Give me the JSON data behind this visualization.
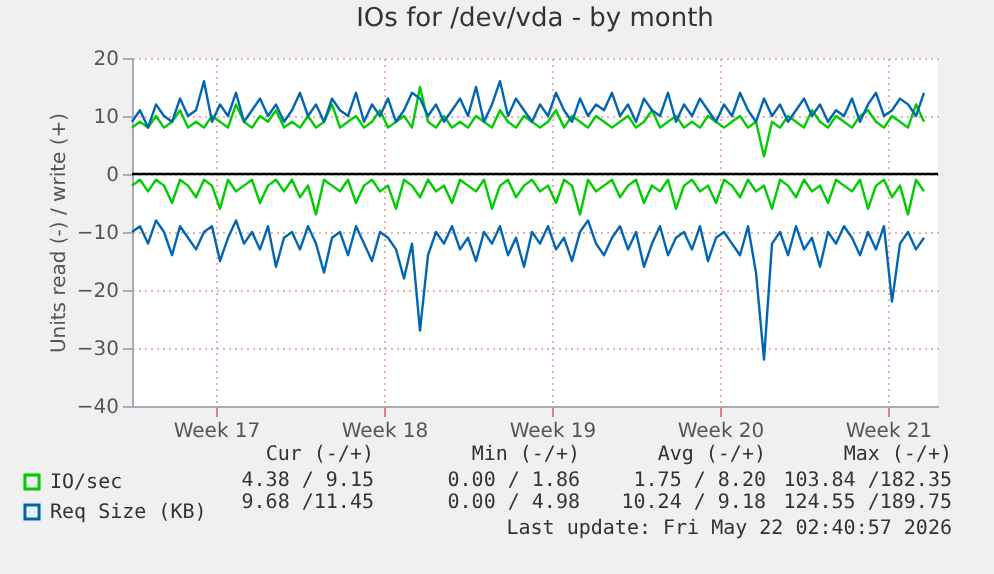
{
  "chart_data": {
    "type": "line",
    "title": "IOs for /dev/vda - by month",
    "ylabel": "Units read (-) / write (+)",
    "x": [
      "2026-04-20T00:00",
      "2026-04-20T08:00",
      "2026-04-20T16:00",
      "2026-04-21T00:00",
      "2026-04-21T08:00",
      "2026-04-21T16:00",
      "2026-04-22T00:00",
      "2026-04-22T08:00",
      "2026-04-22T16:00",
      "2026-04-23T00:00",
      "2026-04-23T08:00",
      "2026-04-23T16:00",
      "2026-04-24T00:00",
      "2026-04-24T08:00",
      "2026-04-24T16:00",
      "2026-04-25T00:00",
      "2026-04-25T08:00",
      "2026-04-25T16:00",
      "2026-04-26T00:00",
      "2026-04-26T08:00",
      "2026-04-26T16:00",
      "2026-04-27T00:00",
      "2026-04-27T08:00",
      "2026-04-27T16:00",
      "2026-04-28T00:00",
      "2026-04-28T08:00",
      "2026-04-28T16:00",
      "2026-04-29T00:00",
      "2026-04-29T08:00",
      "2026-04-29T16:00",
      "2026-04-30T00:00",
      "2026-04-30T08:00",
      "2026-04-30T16:00",
      "2026-05-01T00:00",
      "2026-05-01T08:00",
      "2026-05-01T16:00",
      "2026-05-02T00:00",
      "2026-05-02T08:00",
      "2026-05-02T16:00",
      "2026-05-03T00:00",
      "2026-05-03T08:00",
      "2026-05-03T16:00",
      "2026-05-04T00:00",
      "2026-05-04T08:00",
      "2026-05-04T16:00",
      "2026-05-05T00:00",
      "2026-05-05T08:00",
      "2026-05-05T16:00",
      "2026-05-06T00:00",
      "2026-05-06T08:00",
      "2026-05-06T16:00",
      "2026-05-07T00:00",
      "2026-05-07T08:00",
      "2026-05-07T16:00",
      "2026-05-08T00:00",
      "2026-05-08T08:00",
      "2026-05-08T16:00",
      "2026-05-09T00:00",
      "2026-05-09T08:00",
      "2026-05-09T16:00",
      "2026-05-10T00:00",
      "2026-05-10T08:00",
      "2026-05-10T16:00",
      "2026-05-11T00:00",
      "2026-05-11T08:00",
      "2026-05-11T16:00",
      "2026-05-12T00:00",
      "2026-05-12T08:00",
      "2026-05-12T16:00",
      "2026-05-13T00:00",
      "2026-05-13T08:00",
      "2026-05-13T16:00",
      "2026-05-14T00:00",
      "2026-05-14T08:00",
      "2026-05-14T16:00",
      "2026-05-15T00:00",
      "2026-05-15T08:00",
      "2026-05-15T16:00",
      "2026-05-16T00:00",
      "2026-05-16T08:00",
      "2026-05-16T16:00",
      "2026-05-17T00:00",
      "2026-05-17T08:00",
      "2026-05-17T16:00",
      "2026-05-18T00:00",
      "2026-05-18T08:00",
      "2026-05-18T16:00",
      "2026-05-19T00:00",
      "2026-05-19T08:00",
      "2026-05-19T16:00",
      "2026-05-20T00:00",
      "2026-05-20T08:00",
      "2026-05-20T16:00",
      "2026-05-21T00:00",
      "2026-05-21T08:00",
      "2026-05-21T16:00",
      "2026-05-22T00:00",
      "2026-05-22T08:00",
      "2026-05-22T16:00",
      "2026-05-23T00:00"
    ],
    "series": [
      {
        "name": "IO/sec",
        "color": "#00cc00",
        "values": [
          8,
          9,
          8,
          10,
          8,
          9,
          11,
          8,
          9,
          8,
          10,
          9,
          8,
          12,
          9,
          8,
          10,
          9,
          11,
          8,
          9,
          8,
          10,
          8,
          9,
          12,
          8,
          9,
          10,
          8,
          9,
          11,
          8,
          9,
          10,
          8,
          15,
          9,
          8,
          10,
          8,
          9,
          8,
          10,
          9,
          8,
          11,
          9,
          8,
          10,
          9,
          8,
          9,
          11,
          8,
          10,
          9,
          8,
          10,
          9,
          8,
          9,
          10,
          8,
          9,
          11,
          8,
          9,
          10,
          8,
          9,
          8,
          10,
          9,
          8,
          9,
          10,
          8,
          9,
          3,
          9,
          8,
          10,
          9,
          8,
          11,
          9,
          8,
          10,
          9,
          8,
          10,
          11,
          9,
          8,
          10,
          9,
          8,
          12,
          9
        ]
      },
      {
        "name": "Req Size (KB)",
        "color": "#0066b3",
        "values": [
          9,
          11,
          8,
          12,
          10,
          9,
          13,
          10,
          11,
          16,
          9,
          12,
          10,
          14,
          9,
          11,
          13,
          10,
          12,
          9,
          11,
          14,
          10,
          12,
          9,
          13,
          11,
          10,
          14,
          9,
          12,
          10,
          13,
          9,
          11,
          14,
          13,
          10,
          12,
          9,
          11,
          13,
          10,
          15,
          9,
          12,
          16,
          10,
          13,
          11,
          9,
          12,
          10,
          14,
          11,
          9,
          13,
          10,
          12,
          11,
          14,
          10,
          12,
          9,
          13,
          11,
          10,
          14,
          9,
          12,
          10,
          13,
          11,
          9,
          12,
          10,
          14,
          11,
          9,
          13,
          10,
          12,
          9,
          11,
          13,
          10,
          12,
          9,
          11,
          10,
          13,
          9,
          12,
          14,
          10,
          11,
          13,
          12,
          10,
          14
        ]
      },
      {
        "color": "#00cc00",
        "values": [
          -2,
          -1,
          -3,
          -1,
          -2,
          -5,
          -1,
          -2,
          -4,
          -1,
          -2,
          -6,
          -1,
          -3,
          -2,
          -1,
          -5,
          -2,
          -1,
          -3,
          -1,
          -4,
          -2,
          -7,
          -1,
          -2,
          -3,
          -1,
          -5,
          -2,
          -1,
          -3,
          -2,
          -6,
          -1,
          -2,
          -4,
          -1,
          -3,
          -2,
          -5,
          -1,
          -2,
          -3,
          -1,
          -6,
          -2,
          -1,
          -4,
          -2,
          -1,
          -3,
          -2,
          -5,
          -1,
          -2,
          -7,
          -1,
          -3,
          -2,
          -1,
          -4,
          -2,
          -1,
          -5,
          -2,
          -3,
          -1,
          -6,
          -2,
          -1,
          -3,
          -2,
          -5,
          -1,
          -2,
          -4,
          -1,
          -3,
          -2,
          -6,
          -1,
          -2,
          -4,
          -1,
          -3,
          -2,
          -5,
          -1,
          -2,
          -3,
          -1,
          -6,
          -2,
          -1,
          -4,
          -2,
          -7,
          -1,
          -3
        ]
      },
      {
        "color": "#0066b3",
        "values": [
          -10,
          -9,
          -12,
          -8,
          -10,
          -14,
          -9,
          -11,
          -13,
          -10,
          -9,
          -15,
          -11,
          -8,
          -12,
          -10,
          -13,
          -9,
          -16,
          -11,
          -10,
          -13,
          -9,
          -12,
          -17,
          -11,
          -10,
          -14,
          -9,
          -12,
          -15,
          -10,
          -11,
          -13,
          -18,
          -12,
          -27,
          -14,
          -10,
          -12,
          -9,
          -13,
          -11,
          -15,
          -10,
          -12,
          -9,
          -14,
          -11,
          -16,
          -10,
          -12,
          -9,
          -13,
          -11,
          -15,
          -10,
          -8,
          -12,
          -14,
          -11,
          -9,
          -13,
          -10,
          -16,
          -12,
          -9,
          -14,
          -11,
          -10,
          -13,
          -9,
          -15,
          -11,
          -10,
          -12,
          -14,
          -9,
          -17,
          -32,
          -12,
          -10,
          -14,
          -9,
          -13,
          -11,
          -16,
          -10,
          -12,
          -9,
          -11,
          -14,
          -10,
          -13,
          -9,
          -22,
          -12,
          -10,
          -13,
          -11
        ]
      }
    ],
    "xlim": [
      "2026-04-20T00:00",
      "2026-05-23T14:00"
    ],
    "xticks": [
      {
        "value": "2026-04-23T12:00",
        "label": "Week 17"
      },
      {
        "value": "2026-04-30T12:00",
        "label": "Week 18"
      },
      {
        "value": "2026-05-07T12:00",
        "label": "Week 19"
      },
      {
        "value": "2026-05-14T12:00",
        "label": "Week 20"
      },
      {
        "value": "2026-05-21T12:00",
        "label": "Week 21"
      }
    ],
    "ylim": [
      -40,
      20
    ],
    "yticks": [
      -40,
      -30,
      -20,
      -10,
      0,
      10,
      20
    ],
    "grid": true,
    "legend": "bottom left",
    "ref_lines": [
      {
        "axis": "y",
        "value": 0,
        "color": "#000000"
      }
    ],
    "annotations": [
      "Cur (-/+)",
      "Min (-/+)",
      "Avg (-/+)",
      "Max (-/+)",
      "4.38 / 9.15",
      "0.00 / 1.86",
      "1.75 / 8.20",
      "103.84 /182.35",
      "9.68 /11.45",
      "0.00 / 4.98",
      "10.24 / 9.18",
      "124.55 /189.75",
      "Last update: Fri May 22 02:40:57 2026"
    ]
  }
}
